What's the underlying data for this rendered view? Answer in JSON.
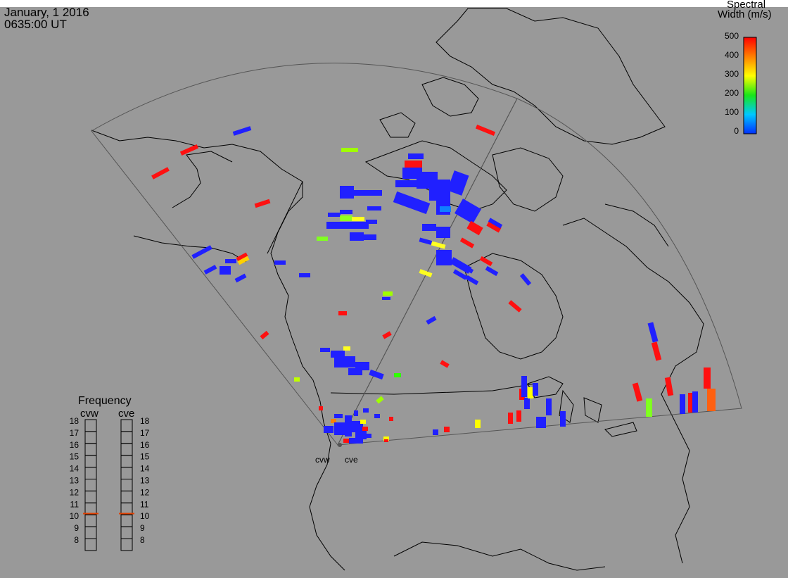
{
  "header": {
    "date": "January, 1 2016",
    "time": "0635:00 UT"
  },
  "colorbar": {
    "title_line1": "Spectral",
    "title_line2": "Width (m/s)",
    "ticks": [
      "500",
      "400",
      "300",
      "200",
      "100",
      "0"
    ],
    "min": 0,
    "max": 500,
    "stops": [
      "#0030ff",
      "#00c8ff",
      "#19e619",
      "#ffff00",
      "#ff8000",
      "#ff0000"
    ]
  },
  "frequency_panel": {
    "title": "Frequency",
    "radars": [
      {
        "name": "cvw",
        "value_mhz": 10.6
      },
      {
        "name": "cve",
        "value_mhz": 10.6
      }
    ],
    "ticks": [
      "18",
      "17",
      "16",
      "15",
      "14",
      "13",
      "12",
      "11",
      "10",
      "9",
      "8"
    ],
    "indicator_color": "#e04000"
  },
  "radar_sites": [
    "cvw",
    "cve"
  ],
  "colors": {
    "background": "#999999",
    "coastline": "#000000",
    "fov": "#555555"
  }
}
